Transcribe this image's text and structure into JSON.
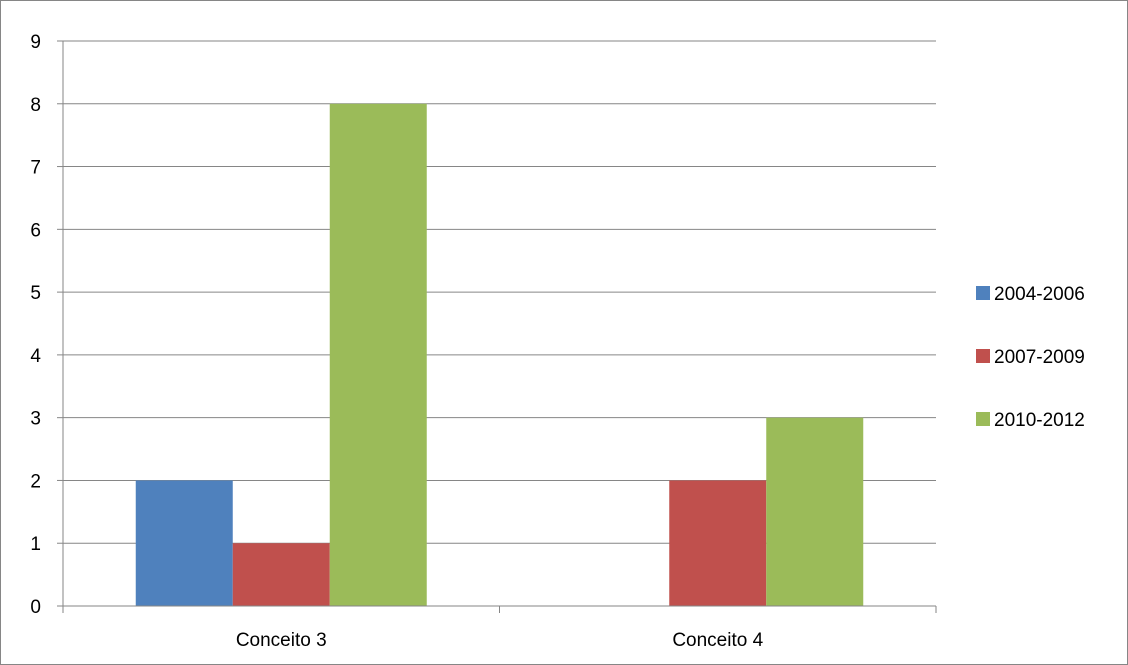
{
  "chart_data": {
    "type": "bar",
    "title": "",
    "xlabel": "",
    "ylabel": "",
    "categories": [
      "Conceito 3",
      "Conceito 4"
    ],
    "series": [
      {
        "name": "2004-2006",
        "values": [
          2,
          0
        ],
        "color": "#4F81BD"
      },
      {
        "name": "2007-2009",
        "values": [
          1,
          2
        ],
        "color": "#C0504D"
      },
      {
        "name": "2010-2012",
        "values": [
          8,
          3
        ],
        "color": "#9BBB59"
      }
    ],
    "ylim": [
      0,
      9
    ],
    "yticks": [
      "0",
      "1",
      "2",
      "3",
      "4",
      "5",
      "6",
      "7",
      "8",
      "9"
    ],
    "grid": true,
    "gridline_color": "#868686",
    "legend_position": "right"
  }
}
